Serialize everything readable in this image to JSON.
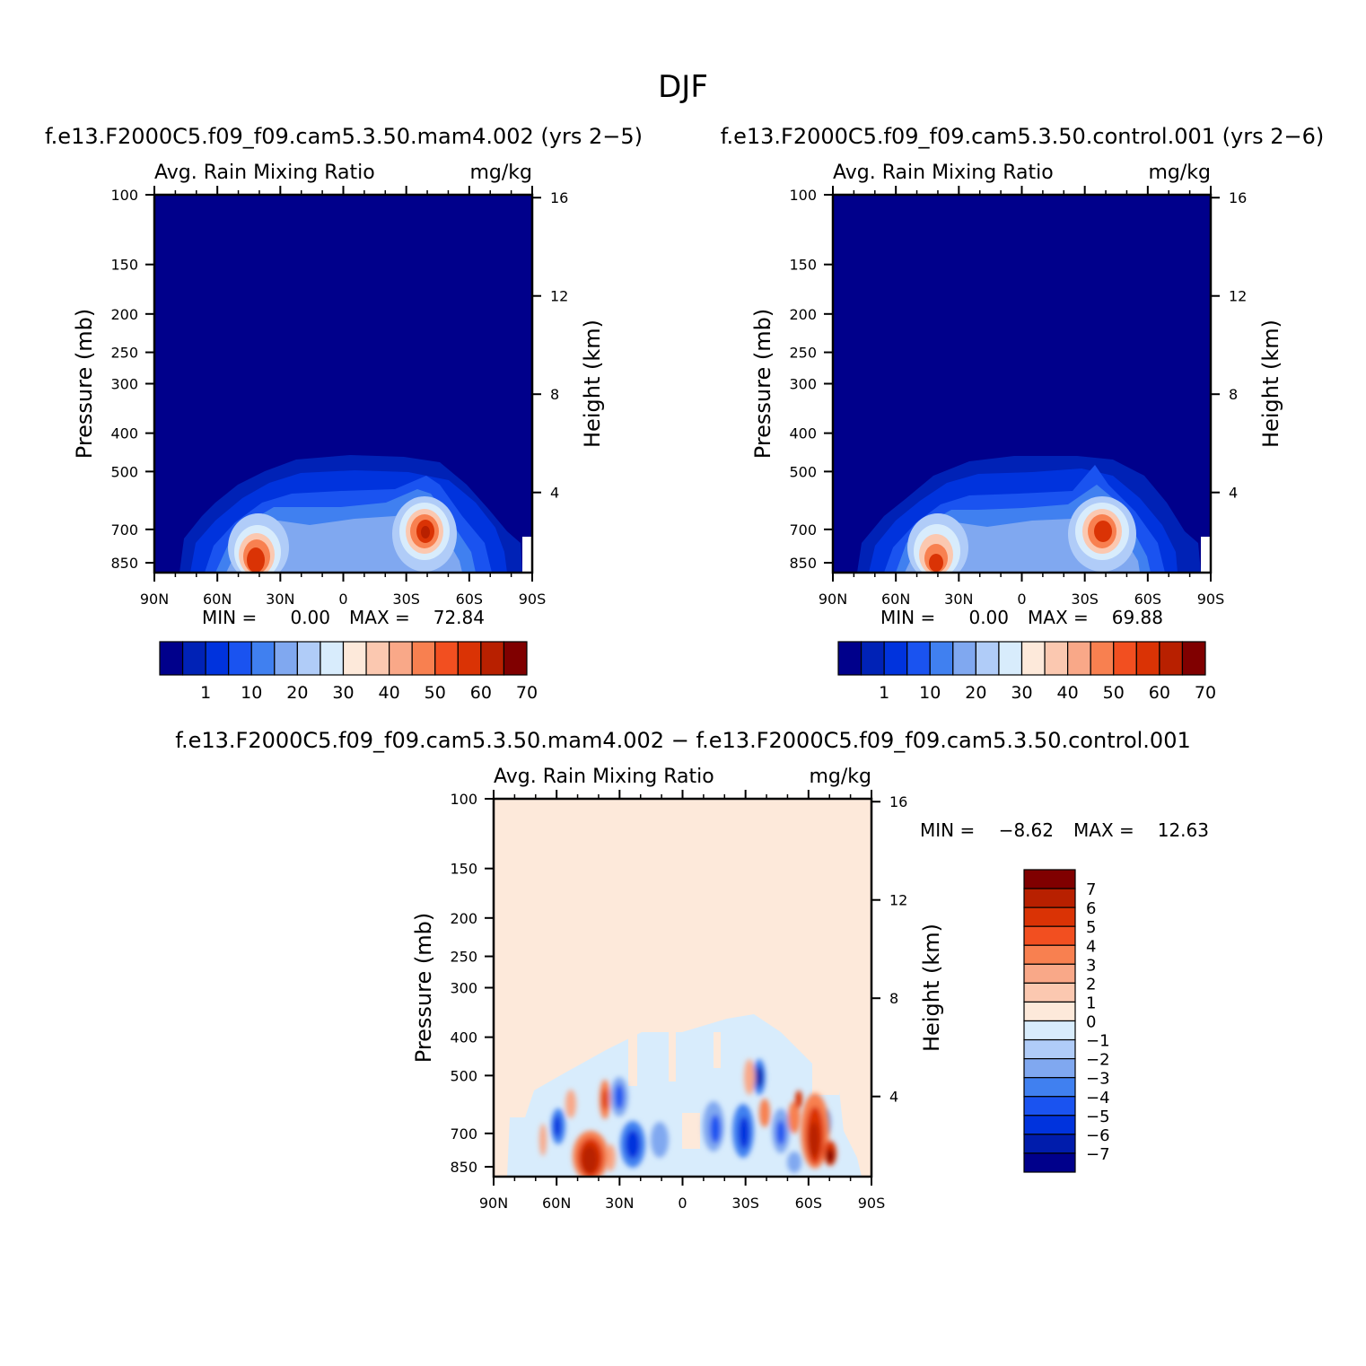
{
  "figure_title": "DJF",
  "min_label": "MIN =",
  "max_label": "MAX =",
  "chart_data": [
    {
      "type": "heatmap",
      "title": "f.e13.F2000C5.f09_f09.cam5.3.50.mam4.002 (yrs 2−5)",
      "variable": "Avg. Rain Mixing Ratio",
      "units": "mg/kg",
      "ylabel": "Pressure (mb)",
      "ylabel_right": "Height (km)",
      "x_ticks": [
        "90N",
        "60N",
        "30N",
        "0",
        "30S",
        "60S",
        "90S"
      ],
      "y_ticks": [
        100,
        150,
        200,
        250,
        300,
        400,
        500,
        700,
        850
      ],
      "y_ticks_right": [
        16,
        12,
        8,
        4
      ],
      "ylim": [
        900,
        100
      ],
      "y_scale": "log",
      "min": "0.00",
      "max": "72.84",
      "colorbar_labels": [
        "1",
        "10",
        "20",
        "30",
        "40",
        "50",
        "60",
        "70"
      ],
      "colorbar_orientation": "horizontal"
    },
    {
      "type": "heatmap",
      "title": "f.e13.F2000C5.f09_f09.cam5.3.50.control.001 (yrs 2−6)",
      "variable": "Avg. Rain Mixing Ratio",
      "units": "mg/kg",
      "ylabel": "Pressure (mb)",
      "ylabel_right": "Height (km)",
      "x_ticks": [
        "90N",
        "60N",
        "30N",
        "0",
        "30S",
        "60S",
        "90S"
      ],
      "y_ticks": [
        100,
        150,
        200,
        250,
        300,
        400,
        500,
        700,
        850
      ],
      "y_ticks_right": [
        16,
        12,
        8,
        4
      ],
      "ylim": [
        900,
        100
      ],
      "y_scale": "log",
      "min": "0.00",
      "max": "69.88",
      "colorbar_labels": [
        "1",
        "10",
        "20",
        "30",
        "40",
        "50",
        "60",
        "70"
      ],
      "colorbar_orientation": "horizontal"
    },
    {
      "type": "heatmap",
      "title": "f.e13.F2000C5.f09_f09.cam5.3.50.mam4.002 − f.e13.F2000C5.f09_f09.cam5.3.50.control.001",
      "variable": "Avg. Rain Mixing Ratio",
      "units": "mg/kg",
      "ylabel": "Pressure (mb)",
      "ylabel_right": "Height (km)",
      "x_ticks": [
        "90N",
        "60N",
        "30N",
        "0",
        "30S",
        "60S",
        "90S"
      ],
      "y_ticks": [
        100,
        150,
        200,
        250,
        300,
        400,
        500,
        700,
        850
      ],
      "y_ticks_right": [
        16,
        12,
        8,
        4
      ],
      "ylim": [
        900,
        100
      ],
      "y_scale": "log",
      "min": "−8.62",
      "max": "12.63",
      "colorbar_labels": [
        "7",
        "6",
        "5",
        "4",
        "3",
        "2",
        "1",
        "0",
        "−1",
        "−2",
        "−3",
        "−4",
        "−5",
        "−6",
        "−7"
      ],
      "colorbar_orientation": "vertical"
    }
  ],
  "colors": {
    "full_seq": [
      "#00008b",
      "#0022b6",
      "#0033dd",
      "#1a53f0",
      "#4080f0",
      "#80a8f0",
      "#b0ccf8",
      "#d8ecfc",
      "#fde9da",
      "#fbc8b0",
      "#f9a888",
      "#f88050",
      "#f24f20",
      "#da3305",
      "#b82000",
      "#800000"
    ],
    "diff_seq": [
      "#00008b",
      "#001cac",
      "#0033dd",
      "#1a53f0",
      "#4080f0",
      "#80a8f0",
      "#b0ccf8",
      "#d8ecfc",
      "#fde9da",
      "#fbc8b0",
      "#f9a888",
      "#f88050",
      "#f24f20",
      "#da3305",
      "#b82000",
      "#800000"
    ]
  }
}
